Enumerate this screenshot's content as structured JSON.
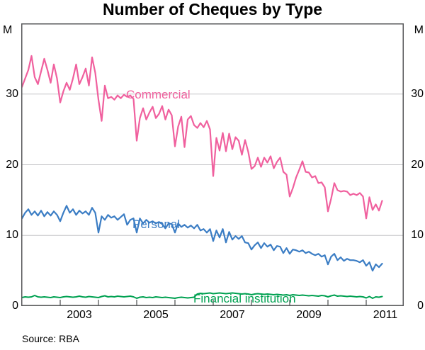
{
  "title": "Number of Cheques by Type",
  "units": {
    "left": "M",
    "right": "M"
  },
  "source": "Source: RBA",
  "chart_data": {
    "type": "line",
    "title": "Number of Cheques by Type",
    "unit": "M (millions of cheques per month)",
    "frequency": "monthly",
    "x_start": "2002-01",
    "x_end": "2011-06",
    "x_tick_years": [
      2003,
      2004,
      2005,
      2006,
      2007,
      2008,
      2009,
      2010,
      2011
    ],
    "x_labels": [
      2003,
      2005,
      2007,
      2009,
      2011
    ],
    "ylim": [
      0,
      40
    ],
    "yticks": [
      0,
      10,
      20,
      30
    ],
    "grid": true,
    "legend_position": "inline-labels",
    "colors": {
      "grid": "#c6c6c8",
      "frame": "#58595b"
    },
    "series": [
      {
        "name": "Commercial",
        "color": "#f0609e",
        "width": 2.2,
        "values": [
          31.0,
          32.2,
          33.4,
          35.4,
          32.4,
          31.4,
          33.2,
          35.0,
          33.4,
          31.6,
          34.2,
          32.2,
          28.8,
          30.4,
          31.6,
          30.6,
          32.2,
          34.2,
          31.4,
          32.4,
          33.6,
          31.2,
          35.2,
          33.0,
          29.2,
          26.2,
          31.2,
          29.4,
          29.6,
          29.2,
          29.8,
          29.4,
          29.9,
          29.6,
          29.8,
          29.3,
          23.4,
          26.6,
          28.0,
          26.4,
          27.4,
          28.2,
          26.6,
          27.2,
          28.3,
          26.4,
          27.8,
          27.0,
          22.6,
          25.4,
          26.8,
          22.5,
          26.4,
          26.9,
          25.6,
          25.2,
          25.9,
          25.3,
          26.2,
          25.0,
          18.4,
          23.8,
          22.0,
          24.5,
          21.9,
          24.4,
          22.2,
          23.9,
          23.4,
          21.4,
          23.5,
          21.8,
          19.4,
          19.8,
          21.0,
          19.7,
          21.0,
          20.3,
          21.2,
          19.5,
          20.4,
          21.0,
          19.0,
          18.6,
          15.5,
          16.7,
          18.2,
          19.3,
          20.5,
          19.0,
          18.9,
          18.2,
          18.4,
          17.4,
          17.5,
          16.8,
          13.4,
          15.2,
          17.4,
          16.4,
          16.2,
          16.3,
          16.2,
          15.7,
          15.9,
          15.7,
          16.0,
          15.5,
          12.4,
          15.4,
          13.6,
          14.4,
          13.5,
          14.9
        ]
      },
      {
        "name": "Personal",
        "color": "#3b7dc4",
        "width": 2.2,
        "values": [
          12.4,
          13.2,
          13.7,
          12.9,
          13.4,
          12.8,
          13.5,
          12.7,
          13.3,
          12.8,
          13.4,
          12.9,
          12.0,
          13.2,
          14.2,
          13.2,
          13.7,
          12.9,
          13.5,
          13.1,
          13.4,
          12.9,
          13.9,
          13.2,
          10.4,
          12.7,
          12.2,
          12.9,
          12.5,
          12.7,
          12.2,
          12.6,
          13.0,
          11.5,
          12.2,
          12.4,
          10.4,
          12.4,
          11.7,
          12.2,
          11.8,
          12.0,
          11.7,
          11.9,
          11.6,
          11.0,
          11.7,
          11.6,
          10.4,
          11.7,
          11.2,
          11.5,
          11.1,
          11.4,
          11.0,
          11.5,
          10.7,
          10.9,
          10.4,
          10.9,
          9.2,
          10.7,
          9.7,
          10.9,
          9.0,
          10.5,
          9.4,
          9.9,
          9.5,
          9.9,
          9.0,
          8.9,
          8.0,
          8.6,
          9.0,
          8.2,
          8.9,
          8.4,
          8.7,
          7.9,
          8.5,
          8.4,
          7.5,
          8.2,
          7.4,
          8.0,
          7.9,
          7.7,
          7.9,
          7.5,
          7.7,
          7.4,
          7.2,
          7.4,
          7.0,
          7.2,
          5.9,
          7.0,
          7.4,
          6.5,
          6.9,
          6.4,
          6.7,
          6.5,
          6.5,
          6.4,
          6.2,
          6.5,
          5.7,
          6.2,
          5.0,
          5.9,
          5.5,
          6.0
        ]
      },
      {
        "name": "Financial institution",
        "color": "#00a151",
        "width": 2.0,
        "values": [
          1.2,
          1.3,
          1.25,
          1.3,
          1.5,
          1.3,
          1.25,
          1.3,
          1.25,
          1.2,
          1.3,
          1.25,
          1.2,
          1.3,
          1.35,
          1.3,
          1.25,
          1.3,
          1.4,
          1.3,
          1.25,
          1.35,
          1.3,
          1.25,
          1.2,
          1.35,
          1.45,
          1.3,
          1.35,
          1.3,
          1.4,
          1.35,
          1.3,
          1.35,
          1.4,
          1.3,
          1.1,
          1.25,
          1.3,
          1.2,
          1.25,
          1.2,
          1.3,
          1.25,
          1.2,
          1.25,
          1.2,
          1.15,
          1.1,
          1.2,
          1.25,
          1.2,
          1.15,
          1.2,
          1.25,
          1.7,
          1.8,
          1.75,
          1.8,
          1.85,
          1.75,
          1.8,
          1.85,
          1.8,
          1.75,
          1.8,
          1.85,
          1.8,
          1.75,
          1.7,
          1.75,
          1.7,
          1.6,
          1.7,
          1.75,
          1.7,
          1.65,
          1.7,
          1.65,
          1.6,
          1.65,
          1.6,
          1.55,
          1.6,
          1.5,
          1.6,
          1.55,
          1.5,
          1.55,
          1.5,
          1.45,
          1.5,
          1.45,
          1.4,
          1.5,
          1.45,
          1.3,
          1.45,
          1.55,
          1.4,
          1.45,
          1.4,
          1.35,
          1.4,
          1.35,
          1.3,
          1.35,
          1.3,
          1.15,
          1.35,
          1.1,
          1.3,
          1.25,
          1.35
        ]
      }
    ]
  }
}
